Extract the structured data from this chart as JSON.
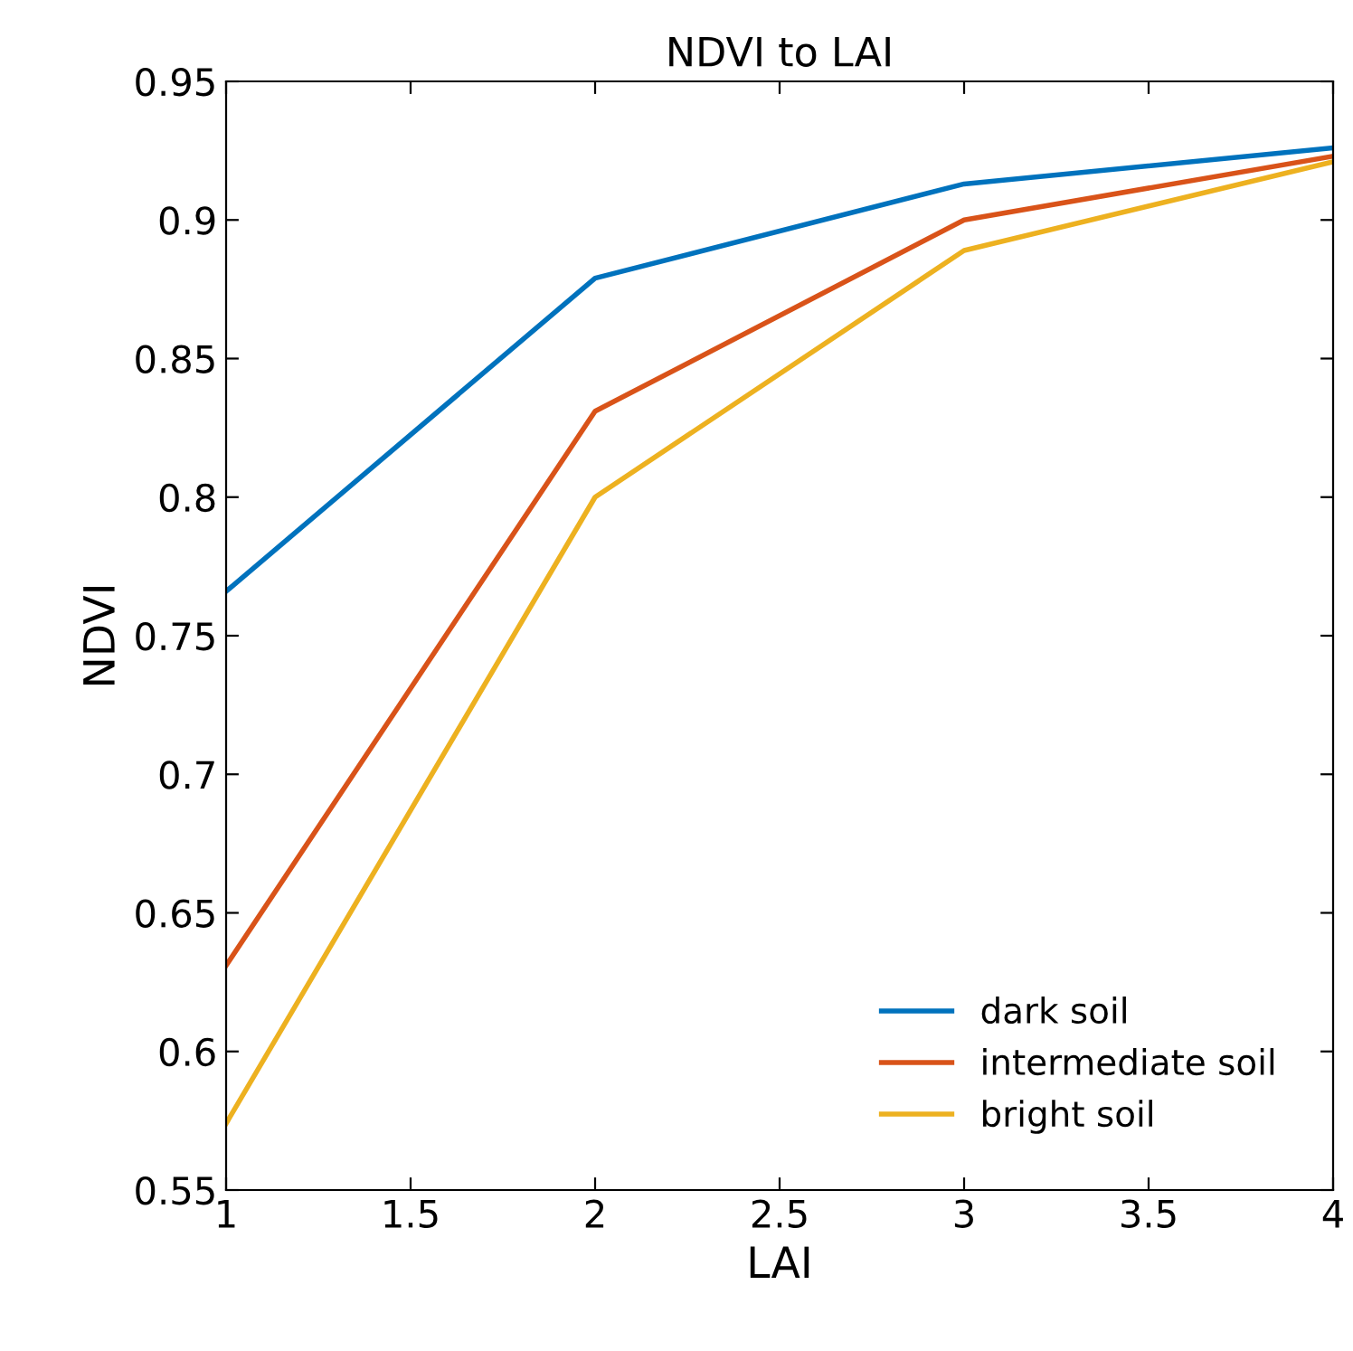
{
  "chart_data": {
    "type": "line",
    "title": "NDVI to LAI",
    "xlabel": "LAI",
    "ylabel": "NDVI",
    "x": [
      1,
      2,
      3,
      4
    ],
    "series": [
      {
        "name": "dark soil",
        "color": "#0072bd",
        "values": [
          0.766,
          0.879,
          0.913,
          0.926
        ]
      },
      {
        "name": "intermediate soil",
        "color": "#d95319",
        "values": [
          0.631,
          0.831,
          0.9,
          0.923
        ]
      },
      {
        "name": "bright soil",
        "color": "#edb120",
        "values": [
          0.574,
          0.8,
          0.889,
          0.921
        ]
      }
    ],
    "xlim": [
      1,
      4
    ],
    "ylim": [
      0.55,
      0.95
    ],
    "xticks": [
      1,
      1.5,
      2,
      2.5,
      3,
      3.5,
      4
    ],
    "yticks": [
      0.55,
      0.6,
      0.65,
      0.7,
      0.75,
      0.8,
      0.85,
      0.9,
      0.95
    ],
    "grid": false,
    "legend": "bottom right",
    "marker": "none",
    "line_style": "solid"
  }
}
